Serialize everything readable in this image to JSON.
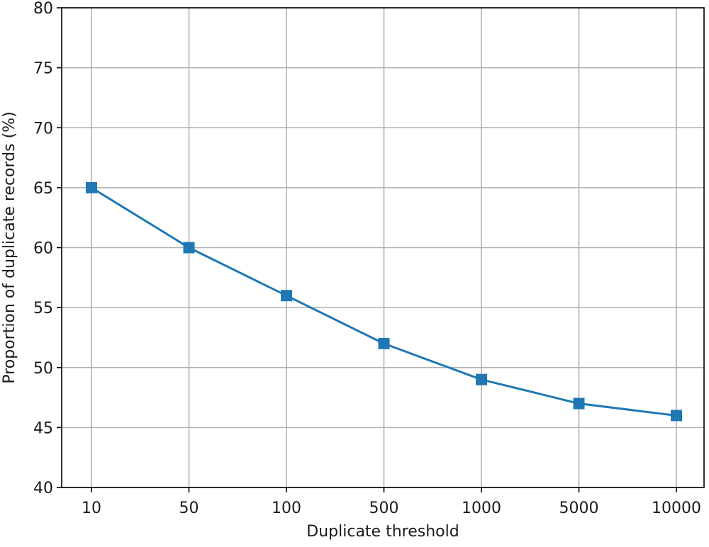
{
  "chart_data": {
    "type": "line",
    "title": "",
    "xlabel": "Duplicate threshold",
    "ylabel": "Proportion of duplicate records (%)",
    "categories": [
      "10",
      "50",
      "100",
      "500",
      "1000",
      "5000",
      "10000"
    ],
    "ylim": [
      40,
      80
    ],
    "yticks": [
      40,
      45,
      50,
      55,
      60,
      65,
      70,
      75,
      80
    ],
    "grid": true,
    "series": [
      {
        "values": [
          65,
          60,
          56,
          52,
          49,
          47,
          46
        ],
        "color": "#1f77b4",
        "marker": "square"
      }
    ]
  }
}
